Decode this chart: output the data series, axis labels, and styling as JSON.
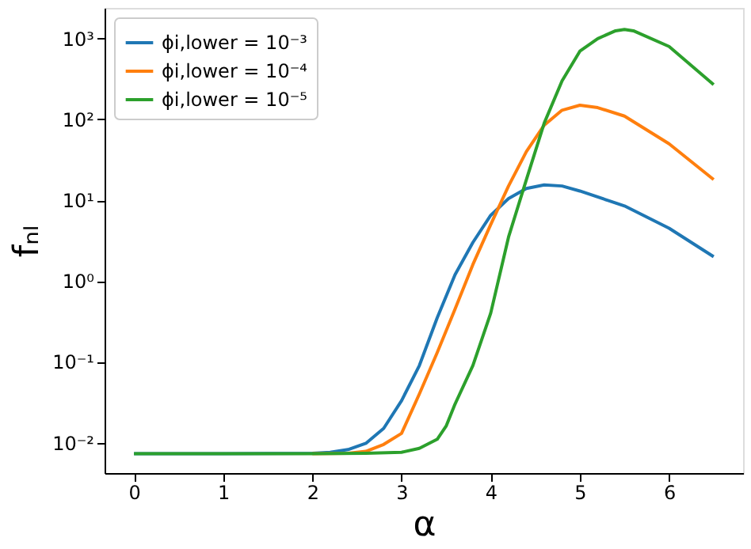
{
  "chart_data": {
    "type": "line",
    "xlabel": "α",
    "ylabel": "fₙₗ",
    "xlim": [
      -0.33,
      6.83
    ],
    "xticks": [
      0,
      1,
      2,
      3,
      4,
      5,
      6
    ],
    "ylim": [
      0.0042,
      2400
    ],
    "yticks": [
      {
        "value": 0.01,
        "label": "10⁻²"
      },
      {
        "value": 0.1,
        "label": "10⁻¹"
      },
      {
        "value": 1,
        "label": "10⁰"
      },
      {
        "value": 10,
        "label": "10¹"
      },
      {
        "value": 100,
        "label": "10²"
      },
      {
        "value": 1000,
        "label": "10³"
      }
    ],
    "log": "y",
    "grid": false,
    "legend": "top left",
    "marker": "none",
    "line_style": "solid",
    "series": [
      {
        "name": "ϕi,lower = 10⁻³",
        "color": "#1f77b4",
        "x": [
          0,
          1,
          2,
          2.2,
          2.4,
          2.6,
          2.8,
          3.0,
          3.2,
          3.4,
          3.6,
          3.8,
          4.0,
          4.2,
          4.4,
          4.6,
          4.8,
          5.0,
          5.5,
          6.0,
          6.5
        ],
        "values": [
          0.0073,
          0.0073,
          0.0074,
          0.0076,
          0.0082,
          0.0098,
          0.015,
          0.033,
          0.09,
          0.35,
          1.2,
          3.0,
          6.5,
          10.5,
          14,
          15.5,
          15,
          13,
          8.5,
          4.5,
          2.0
        ]
      },
      {
        "name": "ϕi,lower = 10⁻⁴",
        "color": "#ff7f0e",
        "x": [
          2,
          2.4,
          2.6,
          2.8,
          3.0,
          3.2,
          3.4,
          3.6,
          3.8,
          4.0,
          4.2,
          4.4,
          4.6,
          4.8,
          5.0,
          5.2,
          5.5,
          6.0,
          6.5
        ],
        "values": [
          0.0073,
          0.0074,
          0.0078,
          0.0095,
          0.013,
          0.04,
          0.13,
          0.45,
          1.6,
          5,
          15,
          40,
          85,
          130,
          150,
          140,
          110,
          50,
          18
        ]
      },
      {
        "name": "ϕi,lower = 10⁻⁵",
        "color": "#2ca02c",
        "x": [
          0,
          1,
          2,
          2.6,
          3.0,
          3.2,
          3.4,
          3.5,
          3.6,
          3.8,
          4.0,
          4.2,
          4.4,
          4.6,
          4.8,
          5.0,
          5.2,
          5.4,
          5.5,
          5.6,
          6.0,
          6.5
        ],
        "values": [
          0.0073,
          0.0073,
          0.0073,
          0.0074,
          0.0076,
          0.0085,
          0.011,
          0.016,
          0.03,
          0.09,
          0.4,
          3.5,
          18,
          90,
          300,
          700,
          1000,
          1250,
          1300,
          1250,
          800,
          270
        ]
      }
    ]
  }
}
